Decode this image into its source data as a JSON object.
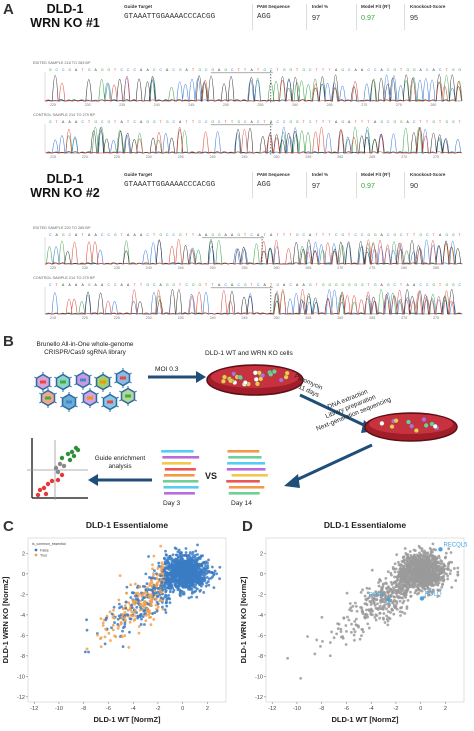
{
  "panels": {
    "a": "A",
    "b": "B",
    "c": "C",
    "d": "D"
  },
  "ko1": {
    "title_line1": "DLD-1",
    "title_line2": "WRN KO #1",
    "guide_label": "Guide Target",
    "guide_seq": "GTAAATTGGAAAACCCACGG",
    "pam_label": "PAM Sequence",
    "pam_seq": "AGG",
    "indel_label": "Indel %",
    "indel_val": "97",
    "model_label": "Model Fit (R²)",
    "model_val": "0.97",
    "ko_label": "Knockout-Score",
    "ko_val": "95",
    "edited_label": "EDITED SAMPLE 218 TO 283 BP",
    "control_label": "CONTROL SAMPLE 214 TO 279 BP",
    "edited_ticks": [
      "225",
      "230",
      "235",
      "240",
      "245",
      "250",
      "255",
      "260",
      "265",
      "270",
      "275",
      "280"
    ],
    "control_ticks": [
      "215",
      "220",
      "225",
      "230",
      "235",
      "240",
      "245",
      "250",
      "255",
      "260",
      "265",
      "270",
      "275"
    ]
  },
  "ko2": {
    "title_line1": "DLD-1",
    "title_line2": "WRN KO #2",
    "guide_label": "Guide Target",
    "guide_seq": "GTAAATTGGAAAACCCACGG",
    "pam_label": "PAM Sequence",
    "pam_seq": "AGG",
    "indel_label": "Indel %",
    "indel_val": "97",
    "model_label": "Model Fit (R²)",
    "model_val": "0.97",
    "ko_label": "Knockout-Score",
    "ko_val": "90",
    "edited_label": "EDITED SAMPLE 220 TO 285 BP",
    "control_label": "CONTROL SAMPLE 214 TO 279 BP",
    "edited_ticks": [
      "225",
      "230",
      "235",
      "240",
      "245",
      "250",
      "255",
      "260",
      "265",
      "270",
      "275",
      "280",
      "285"
    ],
    "control_ticks": [
      "215",
      "220",
      "225",
      "230",
      "235",
      "240",
      "245",
      "250",
      "255",
      "260",
      "265",
      "270",
      "275"
    ]
  },
  "workflow": {
    "library_line1": "Brunello All-in-One whole-genome",
    "library_line2": "CRISPR/Cas9 sgRNA library",
    "moi": "MOI 0.3",
    "cells": "DLD-1 WT and WRN KO cells",
    "puromycin": "Puromycin",
    "days11": "11 days",
    "ngs_line1": "DNA extraction",
    "ngs_line2": "Library preparation",
    "ngs_line3": "Next-generation sequencing",
    "enrich_line1": "Guide enrichment",
    "enrich_line2": "analysis",
    "vs": "VS",
    "day3": "Day 3",
    "day14": "Day 14"
  },
  "chart_data": [
    {
      "type": "scatter",
      "title": "DLD-1 Essentialome",
      "xlabel": "DLD-1 WT [NormZ]",
      "ylabel": "DLD-1 WRN KO [NormZ]",
      "xlim": [
        -12.5,
        3.5
      ],
      "ylim": [
        -12.5,
        3.5
      ],
      "xticks": [
        -12,
        -10,
        -8,
        -6,
        -4,
        -2,
        0,
        2
      ],
      "yticks": [
        -12,
        -10,
        -8,
        -6,
        -4,
        -2,
        0,
        2
      ],
      "legend_title": "is_common_essential",
      "series": [
        {
          "name": "False",
          "color": "#3b7dc4"
        },
        {
          "name": "True",
          "color": "#f0a050"
        }
      ]
    },
    {
      "type": "scatter",
      "title": "DLD-1 Essentialome",
      "xlabel": "DLD-1 WT [NormZ]",
      "ylabel": "DLD-1 WRN KO [NormZ]",
      "xlim": [
        -12.5,
        3.5
      ],
      "ylim": [
        -12.5,
        3.5
      ],
      "xticks": [
        -12,
        -10,
        -8,
        -6,
        -4,
        -2,
        0,
        2
      ],
      "yticks": [
        -12,
        -10,
        -8,
        -6,
        -4,
        -2,
        0,
        2
      ],
      "highlight_color": "#4aa3df",
      "labeled_genes": [
        {
          "gene": "RECQL5",
          "x": 1.6,
          "y": 2.4
        },
        {
          "gene": "RNF4",
          "x": -2.6,
          "y": -2.5
        },
        {
          "gene": "POLQ",
          "x": 0.1,
          "y": -2.4
        }
      ]
    }
  ]
}
